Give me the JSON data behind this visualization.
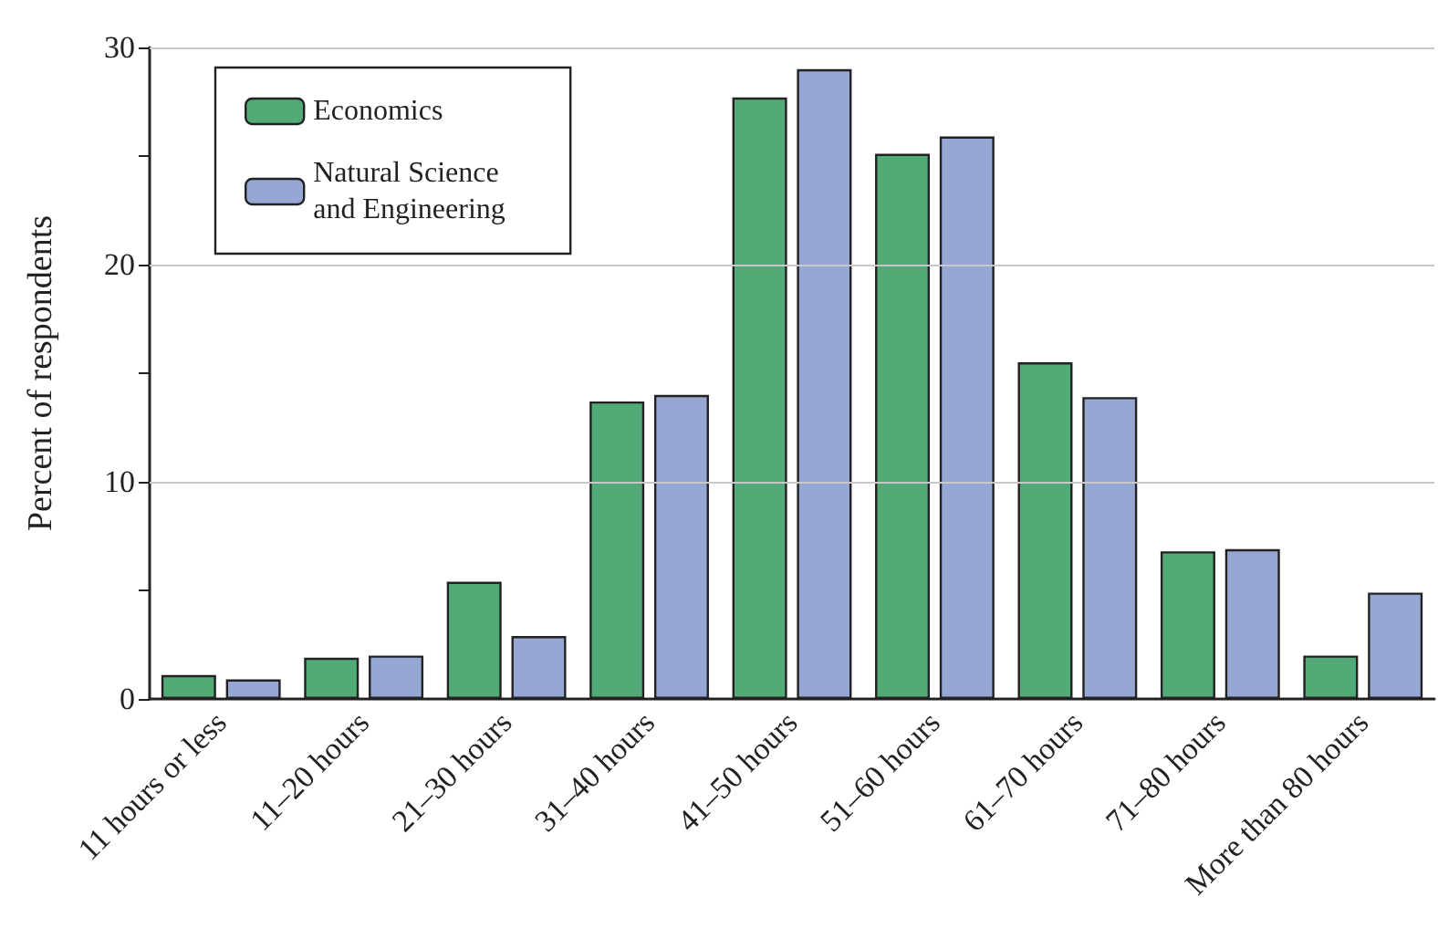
{
  "chart_data": {
    "type": "bar",
    "ylabel": "Percent of respondents",
    "categories": [
      "11 hours or less",
      "11–20 hours",
      "21–30 hours",
      "31–40 hours",
      "41–50 hours",
      "51–60 hours",
      "61–70 hours",
      "71–80 hours",
      "More than 80 hours"
    ],
    "series": [
      {
        "name": "Economics",
        "color": "#52ab77",
        "values": [
          1.1,
          1.9,
          5.4,
          13.7,
          27.7,
          25.1,
          15.5,
          6.8,
          2.0
        ]
      },
      {
        "name": "Natural Science and Engineering",
        "color": "#97a7d4",
        "values": [
          0.9,
          2.0,
          2.9,
          14.0,
          29.0,
          25.9,
          13.9,
          6.9,
          4.9
        ]
      }
    ],
    "ylim": [
      0,
      30
    ],
    "yticks": [
      0,
      {
        "value": 5,
        "label": null
      },
      10,
      {
        "value": 15,
        "label": null
      },
      20,
      {
        "value": 25,
        "label": null
      },
      30
    ],
    "grid": "y",
    "legend": "top left"
  }
}
